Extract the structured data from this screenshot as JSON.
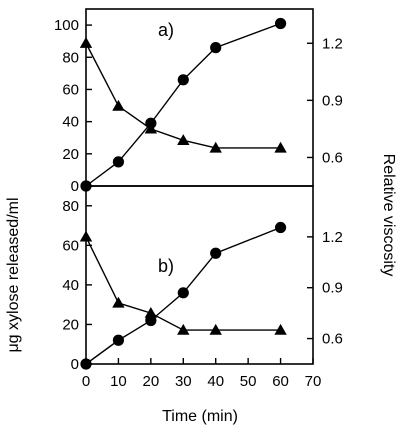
{
  "chart_data": [
    {
      "type": "line",
      "panel_label": "a)",
      "x": [
        0,
        10,
        20,
        30,
        40,
        60
      ],
      "xlim": [
        0,
        70
      ],
      "ylim_left": [
        0,
        110
      ],
      "yticks_left": [
        0,
        20,
        40,
        60,
        80,
        100
      ],
      "ylim_right": [
        0.45,
        1.38
      ],
      "yticks_right": [
        0.6,
        0.9,
        1.2
      ],
      "series": [
        {
          "marker": "circle",
          "axis": "left",
          "values": [
            0,
            15,
            39,
            66,
            86,
            101
          ]
        },
        {
          "marker": "triangle",
          "axis": "right",
          "values": [
            1.2,
            0.87,
            0.75,
            0.69,
            0.65,
            0.65
          ]
        }
      ]
    },
    {
      "type": "line",
      "panel_label": "b)",
      "x": [
        0,
        10,
        20,
        30,
        40,
        60
      ],
      "xlim": [
        0,
        70
      ],
      "xticks": [
        0,
        10,
        20,
        30,
        40,
        50,
        60,
        70
      ],
      "ylim_left": [
        0,
        90
      ],
      "yticks_left": [
        0,
        20,
        40,
        60,
        80
      ],
      "ylim_right": [
        0.45,
        1.5
      ],
      "yticks_right": [
        0.6,
        0.9,
        1.2
      ],
      "series": [
        {
          "marker": "circle",
          "axis": "left",
          "values": [
            0,
            12,
            22,
            36,
            56,
            69
          ]
        },
        {
          "marker": "triangle",
          "axis": "right",
          "values": [
            1.2,
            0.81,
            0.75,
            0.65,
            0.65,
            0.65
          ]
        }
      ]
    }
  ],
  "labels": {
    "xlabel": "Time (min)",
    "ylabel_left": "μg xylose released/ml",
    "ylabel_right": "Relative viscosity"
  }
}
